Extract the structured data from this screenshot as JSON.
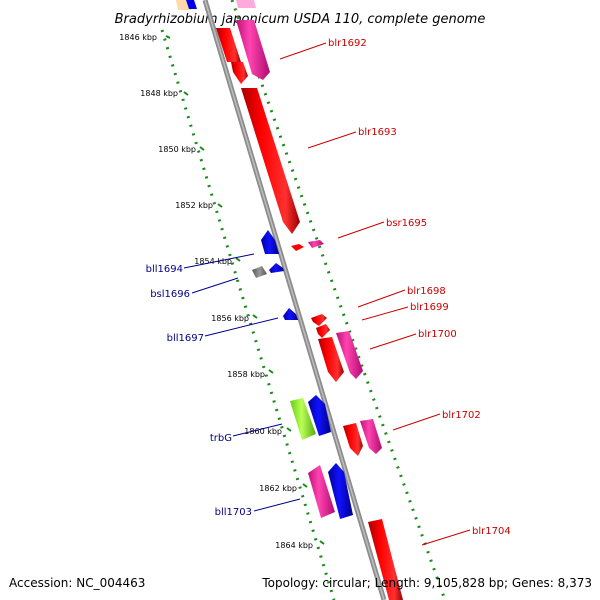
{
  "title": "Bradyrhizobium japonicum USDA 110, complete genome",
  "footer": {
    "accession": "Accession: NC_004463",
    "summary": "Topology: circular; Length: 9,105,828 bp; Genes: 8,373"
  },
  "colors": {
    "backbone": "#8c8c8c",
    "track_ticks": "#1a8a1a",
    "forward_red": "#ff0000",
    "forward_pink": "#ff33aa",
    "reverse_blue": "#0000ee",
    "rna_green": "#99ff33",
    "pseudo_grey": "#777777",
    "label_red": "#cc0000",
    "label_blue": "#00008b"
  },
  "scale": {
    "unit": "kbp",
    "ticks": [
      "1846 kbp",
      "1848 kbp",
      "1850 kbp",
      "1852 kbp",
      "1854 kbp",
      "1856 kbp",
      "1858 kbp",
      "1860 kbp",
      "1862 kbp",
      "1864 kbp"
    ]
  },
  "genes": [
    {
      "label": "blr1692",
      "strand": "forward"
    },
    {
      "label": "blr1693",
      "strand": "forward"
    },
    {
      "label": "bll1694",
      "strand": "reverse"
    },
    {
      "label": "bsr1695",
      "strand": "forward"
    },
    {
      "label": "bsl1696",
      "strand": "reverse"
    },
    {
      "label": "bll1697",
      "strand": "reverse"
    },
    {
      "label": "blr1698",
      "strand": "forward"
    },
    {
      "label": "blr1699",
      "strand": "forward"
    },
    {
      "label": "blr1700",
      "strand": "forward"
    },
    {
      "label": "trbG",
      "strand": "reverse"
    },
    {
      "label": "blr1702",
      "strand": "forward"
    },
    {
      "label": "bll1703",
      "strand": "reverse"
    },
    {
      "label": "blr1704",
      "strand": "forward"
    }
  ]
}
